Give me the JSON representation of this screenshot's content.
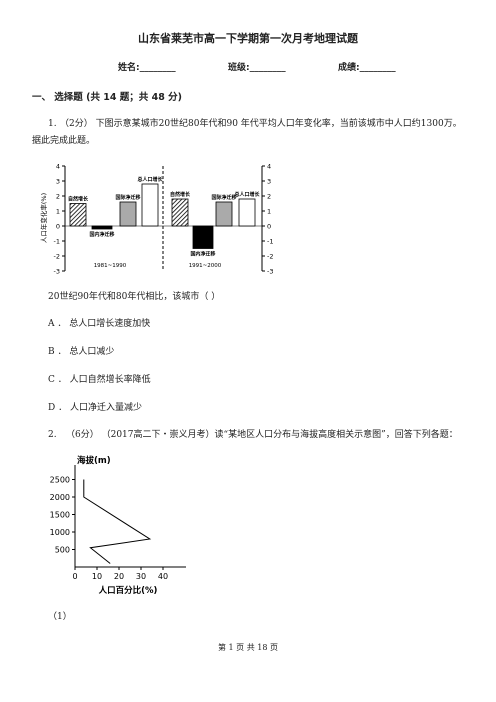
{
  "header": {
    "title": "山东省莱芜市高一下学期第一次月考地理试题",
    "fields": [
      "姓名:________",
      "班级:________",
      "成绩:________"
    ]
  },
  "section": {
    "title": "一、 选择题 (共 14 题；共 48 分)"
  },
  "questions": [
    {
      "number": "1.",
      "text": "（2分） 下图示意某城市20世纪80年代和90  年代平均人口年变化率，当前该城市中人口约1300万。据此完成此题。",
      "figure": {
        "type": "bar",
        "ylabel": "人口年变化率(%)",
        "ylim": [
          -3,
          4
        ],
        "yticks": [
          -3,
          -2,
          -1,
          0,
          1,
          2,
          3,
          4
        ],
        "panels": [
          {
            "label": "1981~1990",
            "categories": [
              "自然增长",
              "国内净迁移",
              "国际净迁移",
              "总人口增长"
            ],
            "values": [
              1.5,
              -0.2,
              1.6,
              2.8
            ]
          },
          {
            "label": "1991~2000",
            "categories": [
              "自然增长",
              "国内净迁移",
              "国际净迁移",
              "总人口增长"
            ],
            "values": [
              1.8,
              -1.5,
              1.6,
              1.8
            ]
          }
        ]
      },
      "stem": "20世纪90年代和80年代相比，该城市（      ）",
      "options": [
        "A ． 总人口增长速度加快",
        "B ． 总人口减少",
        "C ． 人口自然增长率降低",
        "D ． 人口净迁入量减少"
      ]
    },
    {
      "number": "2.",
      "text": "（6分） （2017高二下・崇义月考）读“某地区人口分布与海拔高度相关示意图”，回答下列各题：",
      "figure": {
        "type": "line",
        "title": "海拔(m)",
        "xlabel": "人口百分比(%)",
        "x": [
          4,
          4,
          34,
          7,
          16
        ],
        "values": [
          2500,
          2000,
          800,
          550,
          100
        ],
        "xlim": [
          0,
          45
        ],
        "ylim": [
          0,
          2800
        ],
        "xticks": [
          0,
          10,
          20,
          30,
          40
        ],
        "yticks": [
          500,
          1000,
          1500,
          2000,
          2500
        ]
      },
      "sub": "（1）"
    }
  ],
  "footer": "第 1 页 共 18 页"
}
